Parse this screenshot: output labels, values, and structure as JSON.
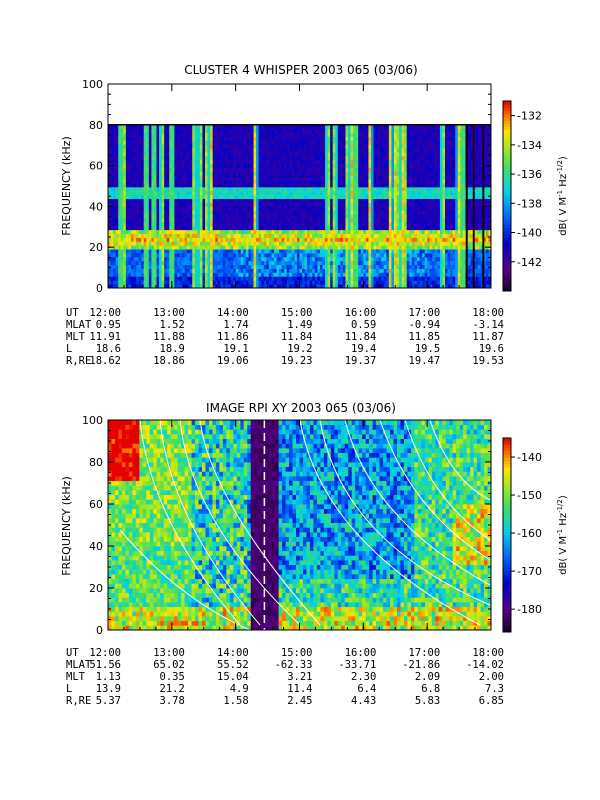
{
  "chart_data": [
    {
      "type": "heatmap",
      "title": "CLUSTER 4 WHISPER 2003 065 (03/06)",
      "ylabel": "FREQUENCY (kHz)",
      "x_categories": [
        "12:00",
        "13:00",
        "14:00",
        "15:00",
        "16:00",
        "17:00",
        "18:00"
      ],
      "ylim": [
        0,
        100
      ],
      "y_ticks": [
        "0",
        "20",
        "40",
        "60",
        "80",
        "100"
      ],
      "data_top_khz": 80,
      "colorbar": {
        "label": "dB( V M⁻¹ Hz⁻¹ᐟ²)",
        "label_parts": [
          "dB( V M",
          "-1",
          " Hz",
          "-1/2",
          ")"
        ],
        "range": [
          -144,
          -131
        ],
        "ticks": [
          "-132",
          "-134",
          "-136",
          "-138",
          "-140",
          "-142"
        ]
      },
      "bands_khz": [
        24,
        47
      ],
      "dark_lines_hours": [
        17.62,
        17.73,
        17.88
      ],
      "ephemeris": {
        "labels": [
          "UT",
          "MLAT",
          "MLT",
          "L",
          "R,RE"
        ],
        "rows": [
          [
            "12:00",
            "13:00",
            "14:00",
            "15:00",
            "16:00",
            "17:00",
            "18:00"
          ],
          [
            "0.95",
            "1.52",
            "1.74",
            "1.49",
            "0.59",
            "-0.94",
            "-3.14"
          ],
          [
            "11.91",
            "11.88",
            "11.86",
            "11.84",
            "11.84",
            "11.85",
            "11.87"
          ],
          [
            "18.6",
            "18.9",
            "19.1",
            "19.2",
            "19.4",
            "19.5",
            "19.6"
          ],
          [
            "18.62",
            "18.86",
            "19.06",
            "19.23",
            "19.37",
            "19.47",
            "19.53"
          ]
        ]
      }
    },
    {
      "type": "heatmap",
      "title": "IMAGE RPI XY 2003 065 (03/06)",
      "ylabel": "FREQUENCY (kHz)",
      "x_categories": [
        "12:00",
        "13:00",
        "14:00",
        "15:00",
        "16:00",
        "17:00",
        "18:00"
      ],
      "ylim": [
        0,
        100
      ],
      "y_ticks": [
        "0",
        "20",
        "40",
        "60",
        "80",
        "100"
      ],
      "colorbar": {
        "label": "dB( V M⁻¹ Hz⁻¹ᐟ²)",
        "label_parts": [
          "dB( V M",
          "-1",
          " Hz",
          "-1/2",
          ")"
        ],
        "range": [
          -186,
          -135
        ],
        "ticks": [
          "-140",
          "-150",
          "-160",
          "-170",
          "-180"
        ]
      },
      "dark_band_hours": [
        14.25,
        14.65
      ],
      "ephemeris": {
        "labels": [
          "UT",
          "MLAT",
          "MLT",
          "L",
          "R,RE"
        ],
        "rows": [
          [
            "12:00",
            "13:00",
            "14:00",
            "15:00",
            "16:00",
            "17:00",
            "18:00"
          ],
          [
            "51.56",
            "65.02",
            "55.52",
            "-62.33",
            "-33.71",
            "-21.86",
            "-14.02"
          ],
          [
            "1.13",
            "0.35",
            "15.04",
            "3.21",
            "2.30",
            "2.09",
            "2.00"
          ],
          [
            "13.9",
            "21.2",
            "4.9",
            "11.4",
            "6.4",
            "6.8",
            "7.3"
          ],
          [
            "5.37",
            "3.78",
            "1.58",
            "2.45",
            "4.43",
            "5.83",
            "6.85"
          ]
        ]
      }
    }
  ]
}
